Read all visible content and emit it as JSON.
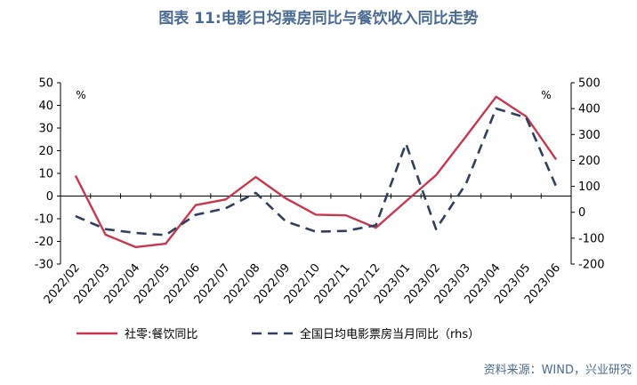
{
  "chart_data": {
    "type": "line",
    "title": "图表 11:电影日均票房同比与餐饮收入同比走势",
    "source": "资料来源：WIND，兴业研究",
    "left_unit": "%",
    "right_unit": "%",
    "categories": [
      "2022/02",
      "2022/03",
      "2022/04",
      "2022/05",
      "2022/06",
      "2022/07",
      "2022/08",
      "2022/09",
      "2022/10",
      "2022/11",
      "2022/12",
      "2023/01",
      "2023/02",
      "2023/03",
      "2023/04",
      "2023/05",
      "2023/06"
    ],
    "ylim": [
      -30,
      50
    ],
    "yticks": [
      -30,
      -20,
      -10,
      0,
      10,
      20,
      30,
      40,
      50
    ],
    "y2lim": [
      -200,
      500
    ],
    "y2ticks": [
      -200,
      -100,
      0,
      100,
      200,
      300,
      400,
      500
    ],
    "grid": false,
    "legend_position": "bottom",
    "series": [
      {
        "name": "社零:餐饮同比",
        "axis": "left",
        "color": "#C8374E",
        "style": "solid",
        "values": [
          9,
          -17,
          -22.5,
          -21,
          -4,
          -1.5,
          8.4,
          -1,
          -8.2,
          -8.5,
          -14,
          -2.3,
          9.2,
          26.3,
          43.8,
          35.1,
          16.1
        ]
      },
      {
        "name": "全国日均电影票房当月同比（rhs）",
        "axis": "right",
        "color": "#2E3F60",
        "style": "dashed",
        "values": [
          -15,
          -65,
          -80,
          -88,
          -10,
          15,
          75,
          -35,
          -75,
          -72,
          -50,
          265,
          -65,
          110,
          400,
          365,
          100
        ]
      }
    ]
  }
}
